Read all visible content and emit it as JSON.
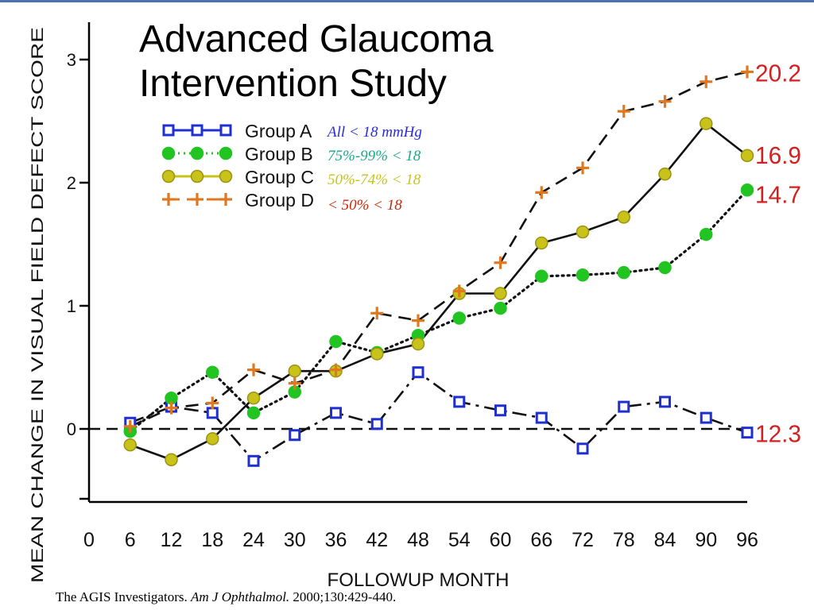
{
  "title_line1": "Advanced Glaucoma",
  "title_line2": "Intervention Study",
  "citation": {
    "authors": "The AGIS Investigators.",
    "journal": "Am J Ophthalmol.",
    "ref": "2000;130:429-440."
  },
  "legend_notes": [
    {
      "text": "All < 18 mmHg",
      "color": "#2a2adf"
    },
    {
      "text": "75%-99% < 18",
      "color": "#1aa88a"
    },
    {
      "text": "50%-74% < 18",
      "color": "#c8c21a"
    },
    {
      "text": "< 50% < 18",
      "color": "#c8280a"
    }
  ],
  "chart_data": {
    "type": "line",
    "xlabel": "FOLLOWUP MONTH",
    "ylabel": "MEAN CHANGE IN VISUAL FIELD DEFECT SCORE",
    "x_ticks": [
      "0",
      "6",
      "12",
      "18",
      "24",
      "30",
      "36",
      "42",
      "48",
      "54",
      "60",
      "66",
      "72",
      "78",
      "84",
      "90",
      "96"
    ],
    "y_ticks": [
      "0",
      "1",
      "2",
      "3"
    ],
    "xlim": [
      0,
      96
    ],
    "ylim": [
      -0.6,
      3.25
    ],
    "reference_line_y": 0,
    "series": [
      {
        "name": "Group A",
        "color": "#1f2fd0",
        "line_style": "dash-dot",
        "marker": "square",
        "end_label": "12.3",
        "x": [
          6,
          12,
          18,
          24,
          30,
          36,
          42,
          48,
          54,
          60,
          66,
          72,
          78,
          84,
          90,
          96
        ],
        "values": [
          0.05,
          0.18,
          0.13,
          -0.26,
          -0.05,
          0.13,
          0.04,
          0.46,
          0.22,
          0.15,
          0.09,
          -0.16,
          0.18,
          0.22,
          0.09,
          -0.03
        ]
      },
      {
        "name": "Group B",
        "color": "#22c422",
        "line_style": "dotted",
        "marker": "circle",
        "end_label": "14.7",
        "x": [
          6,
          12,
          18,
          24,
          30,
          36,
          42,
          48,
          54,
          60,
          66,
          72,
          78,
          84,
          90,
          96
        ],
        "values": [
          -0.02,
          0.25,
          0.46,
          0.13,
          0.3,
          0.71,
          0.62,
          0.76,
          0.9,
          0.98,
          1.24,
          1.25,
          1.27,
          1.31,
          1.58,
          1.94
        ]
      },
      {
        "name": "Group C",
        "color": "#c8c21a",
        "line_style": "solid",
        "marker": "circle",
        "end_label": "16.9",
        "x": [
          6,
          12,
          18,
          24,
          30,
          36,
          42,
          48,
          54,
          60,
          66,
          72,
          78,
          84,
          90,
          96
        ],
        "values": [
          -0.13,
          -0.25,
          -0.08,
          0.25,
          0.47,
          0.47,
          0.61,
          0.69,
          1.1,
          1.1,
          1.51,
          1.6,
          1.72,
          2.07,
          2.48,
          2.22
        ]
      },
      {
        "name": "Group D",
        "color": "#e07820",
        "line_style": "dashed",
        "marker": "plus",
        "end_label": "20.2",
        "x": [
          6,
          12,
          18,
          24,
          30,
          36,
          42,
          48,
          54,
          60,
          66,
          72,
          78,
          84,
          90,
          96
        ],
        "values": [
          0.02,
          0.17,
          0.21,
          0.48,
          0.37,
          0.48,
          0.94,
          0.88,
          1.12,
          1.35,
          1.92,
          2.12,
          2.58,
          2.66,
          2.82,
          2.9
        ]
      }
    ],
    "end_label_color": "#d42020"
  }
}
